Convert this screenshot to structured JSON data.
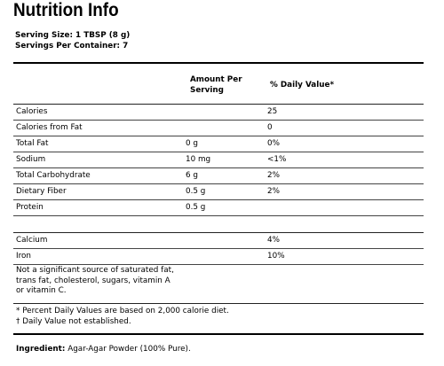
{
  "title": "Nutrition Info",
  "serving_size": "Serving Size: 1 TBSP (8 g)",
  "servings_per_container": "Servings Per Container: 7",
  "table_header": {
    "amount_line1": "Amount Per",
    "amount_line2": "Serving",
    "daily_value": "% Daily Value*"
  },
  "rows": [
    {
      "name": "Calories",
      "amount": "",
      "dv": "25"
    },
    {
      "name": "Calories from Fat",
      "amount": "",
      "dv": "0"
    },
    {
      "name": "Total Fat",
      "amount": "0 g",
      "dv": "0%"
    },
    {
      "name": "Sodium",
      "amount": "10 mg",
      "dv": "<1%"
    },
    {
      "name": "Total Carbohydrate",
      "amount": "6 g",
      "dv": "2%"
    },
    {
      "name": "Dietary Fiber",
      "amount": "0.5 g",
      "dv": "2%"
    },
    {
      "name": "Protein",
      "amount": "0.5 g",
      "dv": ""
    }
  ],
  "minerals": [
    {
      "name": "Calcium",
      "dv": "4%"
    },
    {
      "name": "Iron",
      "dv": "10%"
    }
  ],
  "not_significant": [
    "Not a significant source of saturated fat,",
    "trans fat, cholesterol, sugars, vitamin A",
    "or vitamin C."
  ],
  "footnotes": [
    "* Percent Daily Values are based on 2,000 calorie diet.",
    "† Daily Value not established."
  ],
  "ingredient": {
    "label": "Ingredient:",
    "text": "Agar-Agar Powder (100% Pure)."
  }
}
